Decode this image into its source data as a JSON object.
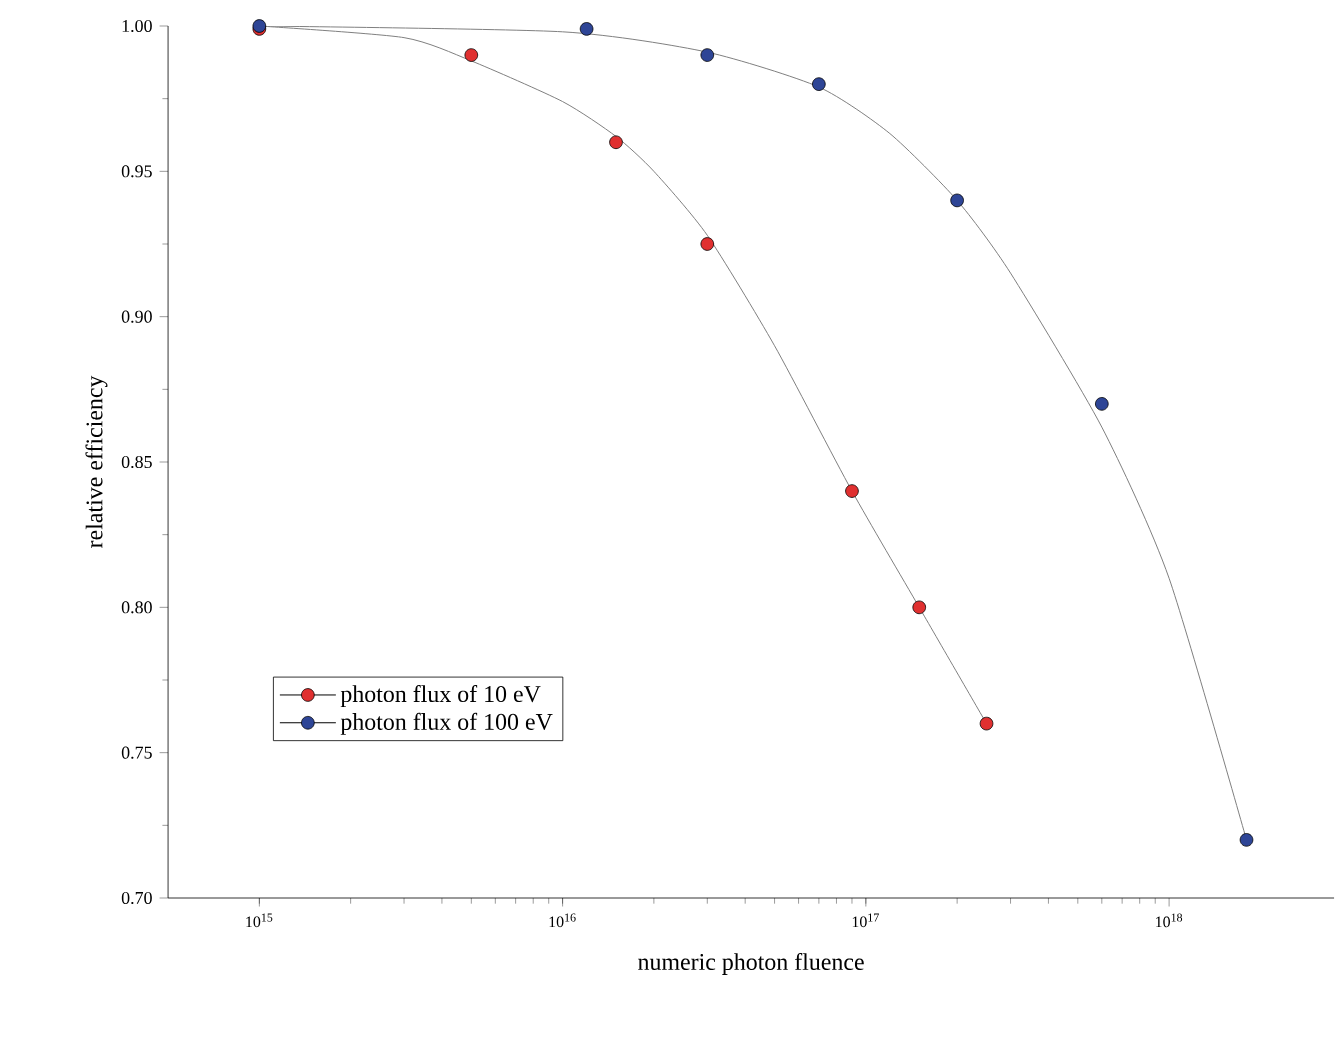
{
  "chart_data": {
    "type": "scatter",
    "xlabel": "numeric photon fluence",
    "ylabel": "relative efficiency",
    "log": "x",
    "xlim": [
      500000000000000.0,
      3.5e+18
    ],
    "ylim": [
      0.7,
      1.0
    ],
    "xticks": [
      {
        "value": 1000000000000000.0,
        "label": "10$^{15}$"
      },
      {
        "value": 1e+16,
        "label": "10$^{16}$"
      },
      {
        "value": 1e+17,
        "label": "10$^{17}$"
      },
      {
        "value": 1e+18,
        "label": "10$^{18}$"
      }
    ],
    "yticks": [
      {
        "value": 0.7,
        "label": "0.70"
      },
      {
        "value": 0.75,
        "label": "0.75"
      },
      {
        "value": 0.8,
        "label": "0.80"
      },
      {
        "value": 0.85,
        "label": "0.85"
      },
      {
        "value": 0.9,
        "label": "0.90"
      },
      {
        "value": 0.95,
        "label": "0.95"
      },
      {
        "value": 1.0,
        "label": "1.00"
      }
    ],
    "marker": "circle",
    "legend": "bottom left",
    "grid": false,
    "series": [
      {
        "name": "photon flux of 10 eV",
        "color": "#e03030",
        "x": [
          1000000000000000.0,
          5000000000000000.0,
          1.5e+16,
          3e+16,
          9e+16,
          1.5e+17,
          2.5e+17
        ],
        "values": [
          0.999,
          0.99,
          0.96,
          0.925,
          0.84,
          0.8,
          0.76
        ]
      },
      {
        "name": "photon flux of 100 eV",
        "color": "#2e4596",
        "x": [
          1000000000000000.0,
          1.2e+16,
          3e+16,
          7e+16,
          2e+17,
          6e+17,
          1.8e+18
        ],
        "values": [
          1.0,
          0.999,
          0.99,
          0.98,
          0.94,
          0.87,
          0.72
        ]
      },
      {
        "type": "line",
        "marker": "none",
        "color": "#808080",
        "x": [
          1000000000000000.0,
          3000000000000000.0,
          5000000000000000.0,
          1e+16,
          1.5e+16,
          2e+16,
          3e+16,
          5e+16,
          9e+16,
          1.5e+17,
          2.5e+17
        ],
        "values": [
          1.0,
          0.996,
          0.988,
          0.974,
          0.962,
          0.95,
          0.928,
          0.89,
          0.84,
          0.8,
          0.76
        ]
      },
      {
        "type": "line",
        "marker": "none",
        "color": "#808080",
        "x": [
          1000000000000000.0,
          1e+16,
          3e+16,
          7e+16,
          1.2e+17,
          2e+17,
          3e+17,
          6e+17,
          1e+18,
          1.8e+18
        ],
        "values": [
          1.0,
          0.998,
          0.991,
          0.979,
          0.963,
          0.94,
          0.915,
          0.862,
          0.81,
          0.72
        ]
      }
    ]
  }
}
